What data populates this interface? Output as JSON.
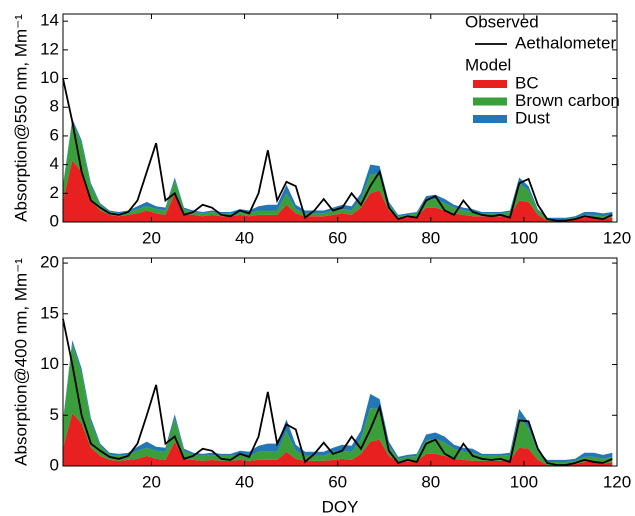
{
  "chart_data": [
    {
      "type": "area",
      "y_label": "Absorption@550 nm, Mm⁻¹",
      "legend": {
        "observed_title": "Observed",
        "model_title": "Model",
        "position": "upper right"
      },
      "x": [
        1,
        3,
        5,
        7,
        9,
        11,
        13,
        15,
        17,
        19,
        21,
        23,
        25,
        27,
        29,
        31,
        33,
        35,
        37,
        39,
        41,
        43,
        45,
        47,
        49,
        51,
        53,
        55,
        57,
        59,
        61,
        63,
        65,
        67,
        69,
        71,
        73,
        75,
        77,
        79,
        81,
        83,
        85,
        87,
        89,
        91,
        93,
        95,
        97,
        99,
        101,
        103,
        105,
        107,
        109,
        111,
        113,
        115,
        117,
        119
      ],
      "xlim": [
        1,
        120
      ],
      "xticks": [
        20,
        40,
        60,
        80,
        100,
        120
      ],
      "ylim": [
        0,
        14.5
      ],
      "yticks": [
        0,
        2,
        4,
        6,
        8,
        10,
        12,
        14
      ],
      "series": [
        {
          "name": "Aethalometer",
          "type": "line",
          "color": "#000000",
          "values": [
            10,
            7,
            3.5,
            1.5,
            1.0,
            0.6,
            0.5,
            0.7,
            1.5,
            3.5,
            5.5,
            1.5,
            2.0,
            0.5,
            0.7,
            1.2,
            1.0,
            0.5,
            0.4,
            0.8,
            0.6,
            2.0,
            5.0,
            1.5,
            2.8,
            2.5,
            0.3,
            0.8,
            1.6,
            0.8,
            1.0,
            2.0,
            1.2,
            2.5,
            3.5,
            1.0,
            0.2,
            0.4,
            0.3,
            1.5,
            1.8,
            0.8,
            0.5,
            1.5,
            0.7,
            0.5,
            0.4,
            0.5,
            0.3,
            2.7,
            3.0,
            1.2,
            0.2,
            0.1,
            0.1,
            0.2,
            0.4,
            0.3,
            0.2,
            0.5
          ]
        },
        {
          "name": "BC",
          "type": "area",
          "color": "#e8201f",
          "values": [
            1.5,
            4.3,
            3.5,
            1.5,
            0.8,
            0.5,
            0.4,
            0.5,
            0.6,
            0.8,
            0.6,
            0.5,
            2.0,
            0.6,
            0.5,
            0.4,
            0.5,
            0.4,
            0.4,
            0.5,
            0.4,
            0.5,
            0.5,
            0.5,
            1.2,
            0.6,
            0.4,
            0.4,
            0.4,
            0.5,
            0.6,
            0.5,
            1.0,
            2.0,
            2.2,
            0.8,
            0.3,
            0.3,
            0.4,
            1.0,
            1.0,
            0.8,
            0.6,
            0.5,
            0.4,
            0.4,
            0.4,
            0.4,
            0.5,
            1.5,
            1.4,
            0.5,
            0.1,
            0.1,
            0.1,
            0.2,
            0.3,
            0.3,
            0.2,
            0.3
          ]
        },
        {
          "name": "Brown  carbon",
          "type": "area",
          "color": "#3a9e3a",
          "values": [
            1.0,
            2.7,
            2.0,
            1.0,
            0.4,
            0.2,
            0.2,
            0.2,
            0.3,
            0.3,
            0.3,
            0.3,
            0.9,
            0.3,
            0.2,
            0.2,
            0.2,
            0.2,
            0.2,
            0.2,
            0.2,
            0.3,
            0.3,
            0.3,
            0.8,
            0.3,
            0.2,
            0.2,
            0.2,
            0.3,
            0.3,
            0.3,
            0.6,
            1.3,
            1.2,
            0.4,
            0.1,
            0.2,
            0.2,
            0.5,
            0.6,
            0.5,
            0.4,
            0.3,
            0.3,
            0.2,
            0.2,
            0.2,
            0.2,
            1.2,
            0.8,
            0.3,
            0.1,
            0.1,
            0.1,
            0.1,
            0.2,
            0.2,
            0.2,
            0.2
          ]
        },
        {
          "name": "Dust",
          "type": "area",
          "color": "#2277b4",
          "values": [
            0.1,
            0.2,
            0.2,
            0.2,
            0.1,
            0.1,
            0.1,
            0.1,
            0.2,
            0.3,
            0.2,
            0.2,
            0.2,
            0.1,
            0.1,
            0.1,
            0.1,
            0.1,
            0.1,
            0.2,
            0.2,
            0.3,
            0.4,
            0.4,
            0.6,
            0.3,
            0.2,
            0.2,
            0.2,
            0.2,
            0.3,
            0.3,
            0.4,
            0.7,
            0.5,
            0.2,
            0.1,
            0.1,
            0.1,
            0.3,
            0.3,
            0.3,
            0.2,
            0.2,
            0.2,
            0.1,
            0.1,
            0.1,
            0.1,
            0.4,
            0.3,
            0.1,
            0.1,
            0.1,
            0.1,
            0.1,
            0.2,
            0.2,
            0.2,
            0.2
          ]
        }
      ]
    },
    {
      "type": "area",
      "y_label": "Absorption@400 nm, Mm⁻¹",
      "x_label": "DOY",
      "legend": false,
      "x": [
        1,
        3,
        5,
        7,
        9,
        11,
        13,
        15,
        17,
        19,
        21,
        23,
        25,
        27,
        29,
        31,
        33,
        35,
        37,
        39,
        41,
        43,
        45,
        47,
        49,
        51,
        53,
        55,
        57,
        59,
        61,
        63,
        65,
        67,
        69,
        71,
        73,
        75,
        77,
        79,
        81,
        83,
        85,
        87,
        89,
        91,
        93,
        95,
        97,
        99,
        101,
        103,
        105,
        107,
        109,
        111,
        113,
        115,
        117,
        119
      ],
      "xlim": [
        1,
        120
      ],
      "xticks": [
        20,
        40,
        60,
        80,
        100,
        120
      ],
      "ylim": [
        0,
        20.5
      ],
      "yticks": [
        0,
        5,
        10,
        15,
        20
      ],
      "series": [
        {
          "name": "Aethalometer",
          "type": "line",
          "color": "#000000",
          "values": [
            14.5,
            10,
            5,
            2.2,
            1.5,
            0.9,
            0.7,
            1.0,
            2.2,
            5.0,
            8.0,
            2.2,
            2.9,
            0.7,
            1.0,
            1.7,
            1.5,
            0.7,
            0.6,
            1.2,
            0.9,
            2.9,
            7.3,
            2.2,
            4.1,
            3.6,
            0.4,
            1.2,
            2.3,
            1.2,
            1.5,
            2.9,
            1.7,
            3.6,
            5.8,
            1.5,
            0.3,
            0.6,
            0.4,
            2.2,
            2.6,
            1.2,
            0.7,
            2.2,
            1.0,
            0.7,
            0.6,
            0.7,
            0.4,
            4.5,
            4.4,
            1.7,
            0.3,
            0.1,
            0.1,
            0.3,
            0.6,
            0.4,
            0.3,
            0.7
          ]
        },
        {
          "name": "BC",
          "type": "area",
          "color": "#e8201f",
          "values": [
            1.8,
            5.2,
            4.2,
            1.8,
            1.0,
            0.6,
            0.5,
            0.6,
            0.7,
            1.0,
            0.7,
            0.6,
            2.4,
            0.7,
            0.6,
            0.5,
            0.6,
            0.5,
            0.5,
            0.6,
            0.5,
            0.6,
            0.6,
            0.6,
            1.4,
            0.7,
            0.5,
            0.5,
            0.5,
            0.6,
            0.7,
            0.6,
            1.2,
            2.4,
            2.6,
            1.0,
            0.4,
            0.4,
            0.5,
            1.2,
            1.2,
            1.0,
            0.7,
            0.6,
            0.5,
            0.5,
            0.5,
            0.5,
            0.6,
            1.8,
            1.7,
            0.6,
            0.1,
            0.1,
            0.1,
            0.2,
            0.4,
            0.4,
            0.2,
            0.4
          ]
        },
        {
          "name": "Brown  carbon",
          "type": "area",
          "color": "#3a9e3a",
          "values": [
            2.5,
            6.8,
            5.0,
            2.5,
            1.0,
            0.5,
            0.5,
            0.5,
            0.8,
            0.8,
            0.8,
            0.8,
            2.3,
            0.8,
            0.5,
            0.5,
            0.5,
            0.5,
            0.5,
            0.5,
            0.5,
            0.8,
            0.8,
            0.8,
            2.0,
            0.8,
            0.5,
            0.5,
            0.5,
            0.8,
            0.8,
            0.8,
            1.5,
            3.3,
            3.0,
            1.0,
            0.3,
            0.5,
            0.5,
            1.3,
            1.5,
            1.3,
            1.0,
            0.8,
            0.8,
            0.5,
            0.5,
            0.5,
            0.5,
            3.0,
            2.0,
            0.8,
            0.3,
            0.3,
            0.3,
            0.3,
            0.5,
            0.5,
            0.5,
            0.5
          ]
        },
        {
          "name": "Dust",
          "type": "area",
          "color": "#2277b4",
          "values": [
            0.2,
            0.4,
            0.4,
            0.4,
            0.2,
            0.2,
            0.2,
            0.2,
            0.4,
            0.6,
            0.4,
            0.4,
            0.4,
            0.2,
            0.2,
            0.2,
            0.2,
            0.2,
            0.2,
            0.4,
            0.4,
            0.6,
            0.8,
            0.8,
            1.2,
            0.6,
            0.4,
            0.4,
            0.4,
            0.4,
            0.6,
            0.6,
            0.8,
            1.4,
            1.0,
            0.4,
            0.2,
            0.2,
            0.2,
            0.6,
            0.6,
            0.6,
            0.4,
            0.4,
            0.4,
            0.2,
            0.2,
            0.2,
            0.2,
            0.8,
            0.6,
            0.2,
            0.2,
            0.2,
            0.2,
            0.2,
            0.4,
            0.4,
            0.4,
            0.4
          ]
        }
      ]
    }
  ]
}
